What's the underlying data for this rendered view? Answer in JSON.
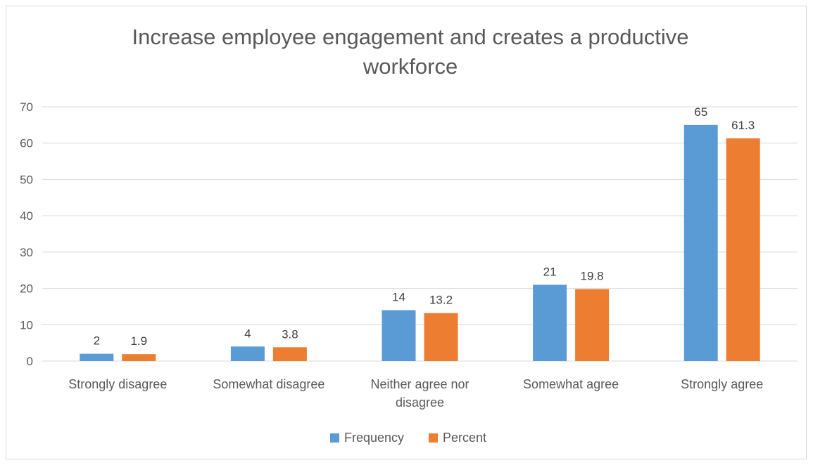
{
  "chart_data": {
    "type": "bar",
    "title": "Increase employee engagement and creates a productive workforce",
    "title_lines": [
      "Increase employee engagement and creates a productive",
      "workforce"
    ],
    "categories": [
      "Strongly disagree",
      "Somewhat disagree",
      "Neither agree nor disagree",
      "Somewhat agree",
      "Strongly agree"
    ],
    "category_lines": [
      [
        "Strongly disagree"
      ],
      [
        "Somewhat disagree"
      ],
      [
        "Neither agree nor",
        "disagree"
      ],
      [
        "Somewhat agree"
      ],
      [
        "Strongly agree"
      ]
    ],
    "series": [
      {
        "name": "Frequency",
        "values": [
          2,
          4,
          14,
          21,
          65
        ],
        "labels": [
          "2",
          "4",
          "14",
          "21",
          "65"
        ],
        "color": "#5B9BD5"
      },
      {
        "name": "Percent",
        "values": [
          1.9,
          3.8,
          13.2,
          19.8,
          61.3
        ],
        "labels": [
          "1.9",
          "3.8",
          "13.2",
          "19.8",
          "61.3"
        ],
        "color": "#ED7D31"
      }
    ],
    "ylim": [
      0,
      70
    ],
    "yticks": [
      0,
      10,
      20,
      30,
      40,
      50,
      60,
      70
    ],
    "grid": true,
    "legend": "bottom"
  }
}
